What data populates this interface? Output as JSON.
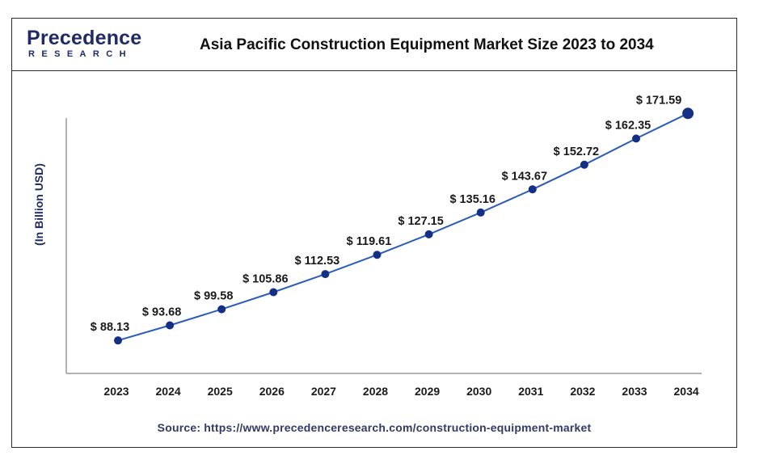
{
  "logo": {
    "main": "Precedence",
    "sub": "RESEARCH"
  },
  "source": "Source: https://www.precedenceresearch.com/construction-equipment-market",
  "colors": {
    "line": "#2b5db8",
    "point": "#132f86",
    "axis": "#9a9a9a",
    "brand": "#1f2a66"
  },
  "chart_data": {
    "type": "line",
    "title": "Asia Pacific Construction Equipment Market Size 2023 to 2034",
    "xlabel": "",
    "ylabel": "(In Billion USD)",
    "categories": [
      "2023",
      "2024",
      "2025",
      "2026",
      "2027",
      "2028",
      "2029",
      "2030",
      "2031",
      "2032",
      "2033",
      "2034"
    ],
    "series": [
      {
        "values": [
          88.13,
          93.68,
          99.58,
          105.86,
          112.53,
          119.61,
          127.15,
          135.16,
          143.67,
          152.72,
          162.35,
          171.59
        ]
      }
    ],
    "data_labels": [
      "$ 88.13",
      "$ 93.68",
      "$ 99.58",
      "$ 105.86",
      "$ 112.53",
      "$ 119.61",
      "$ 127.15",
      "$ 135.16",
      "$ 143.67",
      "$ 152.72",
      "$ 162.35",
      "$ 171.59"
    ],
    "ylim": [
      76,
      180
    ],
    "grid": false,
    "legend": "none"
  }
}
